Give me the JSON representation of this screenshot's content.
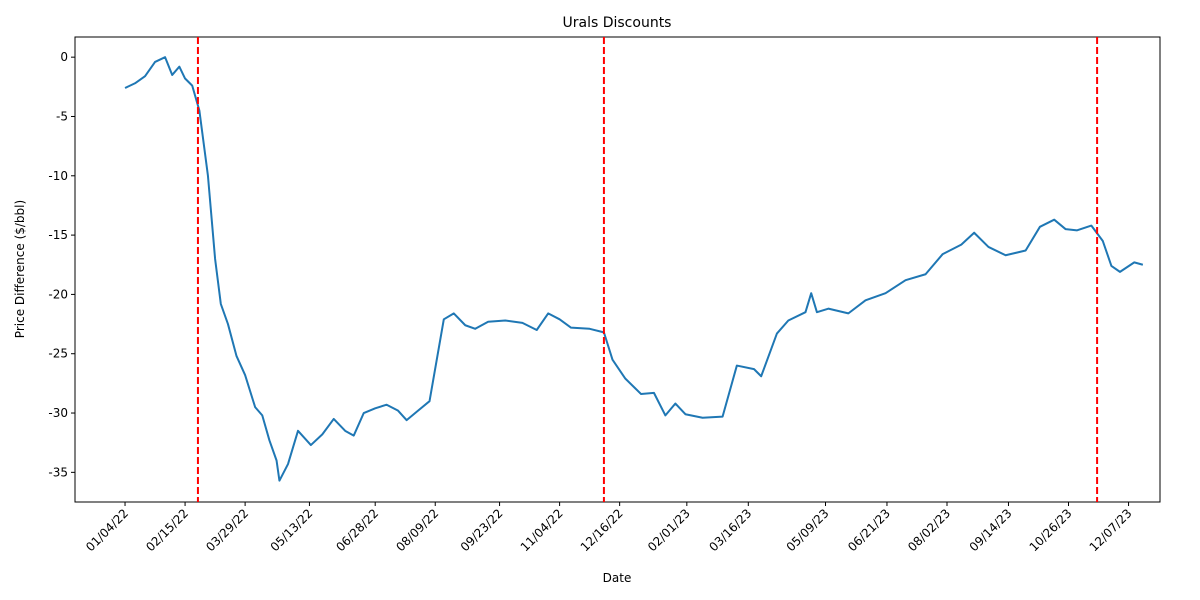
{
  "chart_data": {
    "type": "line",
    "title": "Urals Discounts",
    "x_label": "Date",
    "y_label": "Price Difference ($/bbl)",
    "x": [
      "01/04/22",
      "01/11/22",
      "01/18/22",
      "01/25/22",
      "02/01/22",
      "02/06/22",
      "02/11/22",
      "02/15/22",
      "02/20/22",
      "02/25/22",
      "03/03/22",
      "03/08/22",
      "03/12/22",
      "03/17/22",
      "03/23/22",
      "03/29/22",
      "04/05/22",
      "04/10/22",
      "04/15/22",
      "04/20/22",
      "04/22/22",
      "04/28/22",
      "05/05/22",
      "05/14/22",
      "05/22/22",
      "05/30/22",
      "06/07/22",
      "06/13/22",
      "06/20/22",
      "06/28/22",
      "07/06/22",
      "07/14/22",
      "07/20/22",
      "07/28/22",
      "08/05/22",
      "08/15/22",
      "08/22/22",
      "08/30/22",
      "09/06/22",
      "09/15/22",
      "09/27/22",
      "10/09/22",
      "10/19/22",
      "10/27/22",
      "11/04/22",
      "11/12/22",
      "11/25/22",
      "12/05/22",
      "12/11/22",
      "12/20/22",
      "12/31/22",
      "01/09/23",
      "01/17/23",
      "01/24/23",
      "01/31/23",
      "02/12/23",
      "02/26/23",
      "03/08/23",
      "03/20/23",
      "03/25/23",
      "04/05/23",
      "04/13/23",
      "04/25/23",
      "04/29/23",
      "05/03/23",
      "05/11/23",
      "05/25/23",
      "06/06/23",
      "06/20/23",
      "07/04/23",
      "07/18/23",
      "07/30/23",
      "08/12/23",
      "08/21/23",
      "08/31/23",
      "09/12/23",
      "09/26/23",
      "10/06/23",
      "10/16/23",
      "10/24/23",
      "11/01/23",
      "11/11/23",
      "11/19/23",
      "11/25/23",
      "12/01/23",
      "12/11/23",
      "12/17/23"
    ],
    "series": [
      {
        "name": "Urals Discount",
        "color": "#1f77b4",
        "values": [
          -2.6,
          -2.2,
          -1.6,
          -0.4,
          0.0,
          -1.5,
          -0.8,
          -1.8,
          -2.4,
          -4.5,
          -10,
          -17,
          -20.8,
          -22.5,
          -25.2,
          -26.8,
          -29.5,
          -30.2,
          -32.3,
          -34.0,
          -35.7,
          -34.3,
          -31.5,
          -32.7,
          -31.8,
          -30.5,
          -31.5,
          -31.9,
          -30.0,
          -29.6,
          -29.3,
          -29.8,
          -30.6,
          -29.8,
          -29.0,
          -22.1,
          -21.6,
          -22.6,
          -22.9,
          -22.3,
          -22.2,
          -22.4,
          -23.0,
          -21.6,
          -22.1,
          -22.8,
          -22.9,
          -23.2,
          -25.5,
          -27.1,
          -28.4,
          -28.3,
          -30.2,
          -29.2,
          -30.1,
          -30.4,
          -30.3,
          -26.0,
          -26.3,
          -26.9,
          -23.3,
          -22.2,
          -21.5,
          -19.9,
          -21.5,
          -21.2,
          -21.6,
          -20.5,
          -19.9,
          -18.8,
          -18.3,
          -16.6,
          -15.8,
          -14.8,
          -16.0,
          -16.7,
          -16.3,
          -14.3,
          -13.7,
          -14.5,
          -14.6,
          -14.2,
          -15.5,
          -17.6,
          -18.1,
          -17.3,
          -17.5
        ]
      }
    ],
    "vlines": [
      "02/24/22",
      "12/05/22",
      "11/15/23"
    ],
    "vline_color": "#ff0000",
    "xlim": [
      "11/30/21",
      "12/29/23"
    ],
    "xticks": [
      "01/04/22",
      "02/15/22",
      "03/29/22",
      "05/13/22",
      "06/28/22",
      "08/09/22",
      "09/23/22",
      "11/04/22",
      "12/16/22",
      "02/01/23",
      "03/16/23",
      "05/09/23",
      "06/21/23",
      "08/02/23",
      "09/14/23",
      "10/26/23",
      "12/07/23"
    ],
    "ylim": [
      -37.5,
      1.7
    ],
    "yticks": [
      0,
      -5,
      -10,
      -15,
      -20,
      -25,
      -30,
      -35
    ]
  }
}
